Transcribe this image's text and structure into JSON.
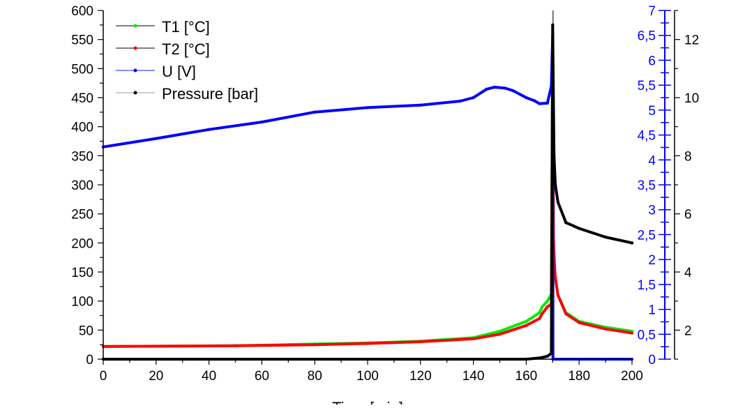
{
  "chart_data": {
    "type": "line",
    "title": "",
    "xlabel": "Time [min]",
    "xlim": [
      0,
      200
    ],
    "xticks": [
      0,
      20,
      40,
      60,
      80,
      100,
      120,
      140,
      160,
      180,
      200
    ],
    "axes": {
      "left": {
        "label": "",
        "ylim": [
          0,
          600
        ],
        "ticks": [
          0,
          50,
          100,
          150,
          200,
          250,
          300,
          350,
          400,
          450,
          500,
          550,
          600
        ],
        "color": "#000000"
      },
      "right_u": {
        "label": "",
        "ylim": [
          0,
          7
        ],
        "ticks": [
          "0",
          "0,5",
          "1",
          "1,5",
          "2",
          "2,5",
          "3",
          "3,5",
          "4",
          "4,5",
          "5",
          "5,5",
          "6",
          "6,5",
          "7"
        ],
        "color": "#0000ff"
      },
      "right_p": {
        "label": "",
        "ylim": [
          1,
          13
        ],
        "ticks": [
          2,
          4,
          6,
          8,
          10,
          12
        ],
        "color": "#000000"
      }
    },
    "legend": {
      "placement": "top-left",
      "entries": [
        "T1 [°C]",
        "T2 [°C]",
        "U [V]",
        "Pressure [bar]"
      ]
    },
    "series": [
      {
        "name": "T1 [°C]",
        "axis": "left",
        "color": "#00ee00",
        "x": [
          0,
          50,
          80,
          100,
          120,
          140,
          150,
          160,
          165,
          166,
          168,
          169.5,
          170,
          170.3,
          170.6,
          171,
          172,
          175,
          180,
          190,
          200
        ],
        "y": [
          22,
          23,
          26,
          28,
          31,
          37,
          48,
          65,
          80,
          90,
          100,
          112,
          530,
          200,
          160,
          140,
          110,
          80,
          65,
          55,
          48
        ]
      },
      {
        "name": "T2 [°C]",
        "axis": "left",
        "color": "#ff0000",
        "x": [
          0,
          50,
          80,
          100,
          120,
          140,
          150,
          160,
          165,
          166,
          168,
          169.5,
          170,
          170.3,
          170.6,
          171,
          172,
          175,
          180,
          190,
          200
        ],
        "y": [
          22,
          23,
          25,
          27,
          30,
          35,
          43,
          58,
          70,
          78,
          90,
          95,
          510,
          210,
          170,
          140,
          110,
          78,
          63,
          52,
          45
        ]
      },
      {
        "name": "U [V]",
        "axis": "right_u",
        "color": "#0000ff",
        "x": [
          0,
          20,
          40,
          60,
          80,
          100,
          120,
          135,
          140,
          145,
          148,
          152,
          155,
          160,
          163,
          165,
          168,
          169.5,
          170,
          170.1,
          200
        ],
        "y": [
          4.26,
          4.43,
          4.61,
          4.76,
          4.96,
          5.05,
          5.1,
          5.18,
          5.25,
          5.42,
          5.46,
          5.44,
          5.39,
          5.25,
          5.19,
          5.13,
          5.14,
          5.48,
          6.5,
          0,
          0
        ]
      },
      {
        "name": "Pressure [bar]",
        "axis": "right_p",
        "color": "#000000",
        "x": [
          0,
          160,
          165,
          168,
          169.5,
          170,
          170.5,
          171,
          172,
          175,
          180,
          190,
          200
        ],
        "y": [
          1,
          1,
          1.04,
          1.1,
          1.2,
          12.5,
          8,
          7,
          6.4,
          5.7,
          5.5,
          5.2,
          5.0
        ]
      }
    ]
  }
}
